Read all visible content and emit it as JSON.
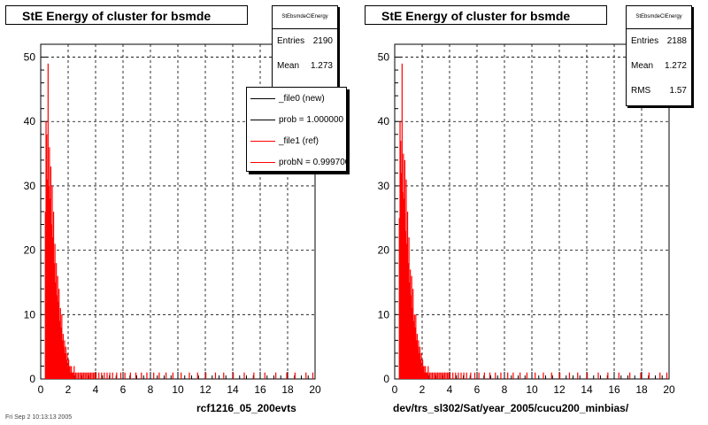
{
  "panels": [
    {
      "title": "StE Energy of cluster for bsmde",
      "stats": {
        "name": "StEbsmdeClEnergy",
        "rows": [
          {
            "label": "Entries",
            "value": "2190"
          },
          {
            "label": "Mean",
            "value": "1.273"
          }
        ]
      },
      "legend": [
        {
          "label": "_file0 (new)",
          "color": "#000000"
        },
        {
          "label": "prob = 1.000000",
          "color": "#000000"
        },
        {
          "label": "_file1 (ref)",
          "color": "#ff0000"
        },
        {
          "label": "probN = 0.999700",
          "color": "#ff0000"
        }
      ],
      "caption": "rcf1216_05_200evts"
    },
    {
      "title": "StE Energy of cluster for bsmde",
      "stats": {
        "name": "StEbsmdeClEnergy",
        "rows": [
          {
            "label": "Entries",
            "value": "2188"
          },
          {
            "label": "Mean",
            "value": "1.272"
          },
          {
            "label": "RMS",
            "value": "1.57"
          }
        ]
      },
      "legend": [],
      "caption": "dev/trs_sl302/Sat/year_2005/cucu200_minbias/"
    }
  ],
  "footer": "Fri Sep  2 10:13:13 2005",
  "chart_data": [
    {
      "type": "bar",
      "title": "StE Energy of cluster for bsmde",
      "xlabel": "rcf1216_05_200evts",
      "ylabel": "",
      "xlim": [
        0,
        20
      ],
      "ylim": [
        0,
        52
      ],
      "x_ticks": [
        "0",
        "2",
        "4",
        "6",
        "8",
        "10",
        "12",
        "14",
        "16",
        "18",
        "20"
      ],
      "y_ticks": [
        "0",
        "10",
        "20",
        "30",
        "40",
        "50"
      ],
      "grid": true,
      "legend_position": "top-right",
      "bin_width": 0.05,
      "series": [
        {
          "name": "_file0 (new)",
          "color": "#000000"
        },
        {
          "name": "_file1 (ref)",
          "color": "#ff0000"
        }
      ],
      "x": [
        0.3,
        0.35,
        0.4,
        0.45,
        0.5,
        0.55,
        0.6,
        0.65,
        0.7,
        0.75,
        0.8,
        0.85,
        0.9,
        0.95,
        1.0,
        1.05,
        1.1,
        1.15,
        1.2,
        1.25,
        1.3,
        1.35,
        1.4,
        1.45,
        1.5,
        1.55,
        1.6,
        1.65,
        1.7,
        1.75,
        1.8,
        1.85,
        1.9,
        1.95,
        2.0,
        2.05,
        2.1,
        2.15,
        2.2,
        2.25,
        2.3,
        2.35,
        2.4,
        2.5,
        2.6,
        2.7,
        2.8,
        2.9,
        3.0,
        3.1,
        3.2,
        3.3,
        3.4,
        3.5,
        3.6,
        3.7,
        3.8,
        3.9,
        4.0,
        4.2,
        4.4,
        4.6,
        4.8,
        5.0,
        5.2,
        5.5,
        5.8,
        6.1,
        6.5,
        6.9,
        7.3,
        7.7,
        8.2,
        8.6,
        9.1,
        9.6,
        10.2,
        10.8,
        11.4,
        12.0,
        12.7,
        13.3,
        14.0,
        14.8,
        15.5,
        16.3,
        17.1,
        17.9,
        18.5,
        19.3,
        19.8
      ],
      "values": [
        26,
        40,
        38,
        31,
        49,
        30,
        36,
        28,
        33,
        24,
        30,
        22,
        26,
        18,
        21,
        15,
        18,
        13,
        16,
        12,
        14,
        9,
        11,
        8,
        10,
        6,
        7,
        5,
        6,
        4,
        5,
        3,
        4,
        2,
        3,
        2,
        2,
        1,
        2,
        1,
        1,
        1,
        2,
        1,
        1,
        1,
        1,
        1,
        1,
        1,
        1,
        1,
        1,
        1,
        1,
        1,
        1,
        1,
        1,
        1,
        1,
        1,
        1,
        1,
        1,
        1,
        1,
        1,
        1,
        1,
        1,
        1,
        1,
        1,
        1,
        1,
        1,
        1,
        1,
        1,
        1,
        1,
        1,
        1,
        1,
        1,
        1,
        1,
        1,
        1,
        1
      ]
    },
    {
      "type": "bar",
      "title": "StE Energy of cluster for bsmde",
      "xlabel": "dev/trs_sl302/Sat/year_2005/cucu200_minbias/",
      "ylabel": "",
      "xlim": [
        0,
        20
      ],
      "ylim": [
        0,
        52
      ],
      "x_ticks": [
        "0",
        "2",
        "4",
        "6",
        "8",
        "10",
        "12",
        "14",
        "16",
        "18",
        "20"
      ],
      "y_ticks": [
        "0",
        "10",
        "20",
        "30",
        "40",
        "50"
      ],
      "grid": true,
      "bin_width": 0.05,
      "series": [
        {
          "name": "_file1 (ref)",
          "color": "#ff0000"
        }
      ],
      "x": [
        0.3,
        0.35,
        0.4,
        0.45,
        0.5,
        0.55,
        0.6,
        0.65,
        0.7,
        0.75,
        0.8,
        0.85,
        0.9,
        0.95,
        1.0,
        1.05,
        1.1,
        1.15,
        1.2,
        1.25,
        1.3,
        1.35,
        1.4,
        1.45,
        1.5,
        1.55,
        1.6,
        1.65,
        1.7,
        1.75,
        1.8,
        1.85,
        1.9,
        1.95,
        2.0,
        2.05,
        2.1,
        2.15,
        2.2,
        2.25,
        2.3,
        2.35,
        2.4,
        2.5,
        2.6,
        2.7,
        2.8,
        2.9,
        3.0,
        3.1,
        3.2,
        3.3,
        3.4,
        3.5,
        3.6,
        3.7,
        3.8,
        3.9,
        4.0,
        4.2,
        4.4,
        4.6,
        4.8,
        5.0,
        5.2,
        5.5,
        5.8,
        6.1,
        6.5,
        6.9,
        7.3,
        7.7,
        8.2,
        8.6,
        9.1,
        9.6,
        10.2,
        10.8,
        11.4,
        12.0,
        12.7,
        13.3,
        14.0,
        14.8,
        15.5,
        16.3,
        17.1,
        17.9,
        18.5,
        19.3,
        19.8
      ],
      "values": [
        25,
        40,
        37,
        32,
        49,
        29,
        35,
        28,
        34,
        23,
        31,
        21,
        26,
        18,
        22,
        15,
        17,
        13,
        16,
        11,
        14,
        9,
        10,
        8,
        10,
        6,
        7,
        5,
        6,
        4,
        5,
        3,
        4,
        2,
        3,
        2,
        2,
        1,
        2,
        1,
        1,
        1,
        2,
        1,
        1,
        1,
        1,
        1,
        1,
        1,
        1,
        1,
        1,
        1,
        1,
        1,
        1,
        1,
        1,
        1,
        1,
        1,
        1,
        1,
        1,
        1,
        1,
        1,
        1,
        1,
        1,
        1,
        1,
        1,
        1,
        1,
        1,
        1,
        1,
        1,
        1,
        1,
        1,
        1,
        1,
        1,
        1,
        1,
        1,
        1,
        1
      ]
    }
  ]
}
